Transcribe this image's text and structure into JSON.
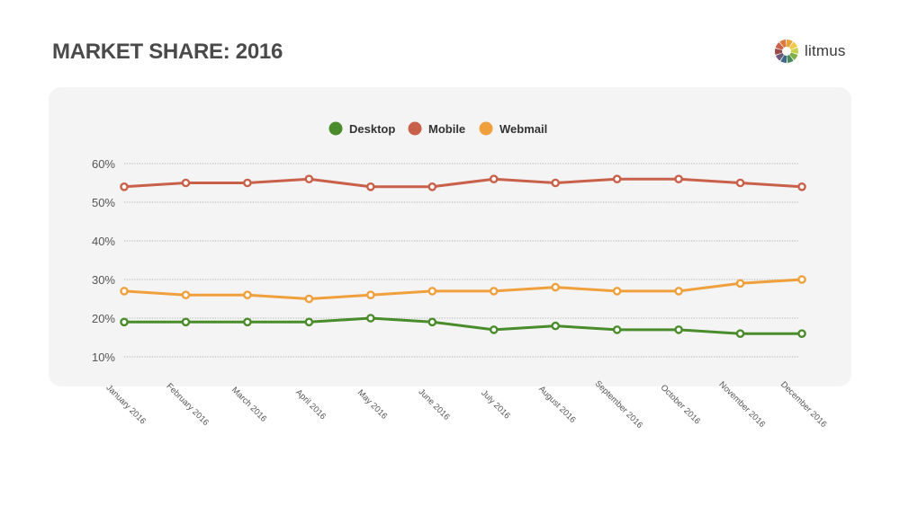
{
  "header": {
    "title": "MARKET SHARE: 2016",
    "brand_name": "litmus"
  },
  "colors": {
    "desktop": "#4a8b2c",
    "mobile": "#c9604a",
    "webmail": "#efa03c",
    "grid": "#9a9a9a",
    "text": "#555555",
    "logo_segments": [
      "#e9a23b",
      "#f2c84b",
      "#c8d24a",
      "#7fb04a",
      "#4a8b5a",
      "#3f6a8a",
      "#6b5a7a",
      "#9a4a4a",
      "#c9604a",
      "#e07a3a"
    ]
  },
  "chart_data": {
    "type": "line",
    "title": "MARKET SHARE: 2016",
    "xlabel": "",
    "ylabel": "",
    "legend_position": "top-center",
    "grid": true,
    "ylim": [
      10,
      60
    ],
    "yticks": [
      "60%",
      "50%",
      "40%",
      "30%",
      "20%",
      "10%"
    ],
    "ytick_values": [
      60,
      50,
      40,
      30,
      20,
      10
    ],
    "categories": [
      "January 2016",
      "February 2016",
      "March 2016",
      "April 2016",
      "May 2016",
      "June 2016",
      "July 2016",
      "August 2016",
      "September 2016",
      "October 2016",
      "November 2016",
      "December 2016"
    ],
    "series": [
      {
        "name": "Desktop",
        "key": "desktop",
        "values": [
          19,
          19,
          19,
          19,
          20,
          19,
          17,
          18,
          17,
          17,
          16,
          16
        ]
      },
      {
        "name": "Mobile",
        "key": "mobile",
        "values": [
          54,
          55,
          55,
          56,
          54,
          54,
          56,
          55,
          56,
          56,
          55,
          54
        ]
      },
      {
        "name": "Webmail",
        "key": "webmail",
        "values": [
          27,
          26,
          26,
          25,
          26,
          27,
          27,
          28,
          27,
          27,
          29,
          30
        ]
      }
    ]
  }
}
